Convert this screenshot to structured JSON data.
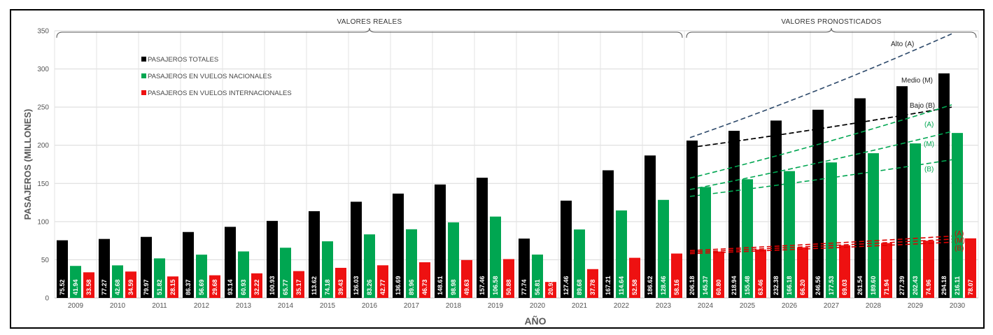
{
  "chart_data": {
    "type": "bar",
    "ylabel": "PASAJEROS (MILLONES)",
    "xlabel": "AÑO",
    "ylim": [
      0,
      350
    ],
    "yticks": [
      0,
      50,
      100,
      150,
      200,
      250,
      300,
      350
    ],
    "grid": true,
    "categories": [
      "2009",
      "2010",
      "2011",
      "2012",
      "2013",
      "2014",
      "2015",
      "2016",
      "2017",
      "2018",
      "2019",
      "2020",
      "2021",
      "2022",
      "2023",
      "2024",
      "2025",
      "2026",
      "2027",
      "2028",
      "2029",
      "2030"
    ],
    "series": [
      {
        "name": "PASAJEROS TOTALES",
        "color": "#000000",
        "values": [
          75.52,
          77.27,
          79.97,
          86.37,
          93.14,
          100.93,
          113.62,
          126.03,
          136.69,
          148.61,
          157.46,
          77.74,
          127.46,
          167.21,
          186.62,
          206.18,
          218.94,
          232.38,
          246.56,
          261.54,
          277.39,
          294.18
        ],
        "labels": [
          "75.52",
          "77.27",
          "79.97",
          "86.37",
          "93.14",
          "100.93",
          "113.62",
          "126.03",
          "136.69",
          "148.61",
          "157.46",
          "77.74",
          "127.46",
          "167.21",
          "186.62",
          "206.18",
          "218.94",
          "232.38",
          "246.56",
          "261.54",
          "277.39",
          "294.18"
        ]
      },
      {
        "name": "PASAJEROS EN VUELOS NACIONALES",
        "color": "#00a651",
        "values": [
          41.94,
          42.68,
          51.82,
          56.69,
          60.93,
          65.77,
          74.18,
          83.26,
          89.96,
          98.98,
          106.58,
          56.81,
          89.68,
          114.64,
          128.46,
          145.37,
          155.48,
          166.18,
          177.53,
          189.6,
          202.43,
          216.11
        ],
        "labels": [
          "41.94",
          "42.68",
          "51.82",
          "56.69",
          "60.93",
          "65.77",
          "74.18",
          "83.26",
          "89.96",
          "98.98",
          "106.58",
          "56.81",
          "89.68",
          "114.64",
          "128.46",
          "145.37",
          "155.48",
          "166.18",
          "177.53",
          "189.60",
          "202.43",
          "216.11"
        ]
      },
      {
        "name": "PASAJEROS EN VUELOS INTERNACIONALES",
        "color": "#ee1111",
        "values": [
          33.58,
          34.59,
          28.15,
          29.68,
          32.22,
          35.17,
          39.43,
          42.77,
          46.73,
          49.63,
          50.88,
          20.93,
          37.78,
          52.58,
          58.16,
          60.8,
          63.46,
          66.2,
          69.03,
          71.94,
          74.96,
          78.07
        ],
        "labels": [
          "33.58",
          "34.59",
          "28.15",
          "29.68",
          "32.22",
          "35.17",
          "39.43",
          "42.77",
          "46.73",
          "49.63",
          "50.88",
          "20.93",
          "37.78",
          "52.58",
          "58.16",
          "60.80",
          "63.46",
          "66.20",
          "69.03",
          "71.94",
          "74.96",
          "78.07"
        ]
      }
    ],
    "legend": {
      "placement": "top-left"
    },
    "brackets": [
      {
        "label": "VALORES REALES",
        "from": "2009",
        "to": "2023"
      },
      {
        "label": "VALORES PRONOSTICADOS",
        "from": "2024",
        "to": "2030"
      }
    ],
    "projections": [
      {
        "label": "Alto (A)",
        "group": "total",
        "color": "#2e4a6b",
        "x": [
          2024,
          2030
        ],
        "y": [
          210,
          346
        ]
      },
      {
        "label": "Medio (M)",
        "group": "total",
        "color": "#000000",
        "x": [
          2024,
          2030
        ],
        "y": [
          197,
          250
        ]
      },
      {
        "label": "Bajo (B)",
        "group": "total",
        "color": "#000000",
        "x": [
          2024,
          2030
        ],
        "y": [
          197,
          250
        ]
      },
      {
        "label": "(A)",
        "group": "nacional",
        "color": "#00a651",
        "x": [
          2024,
          2030
        ],
        "y": [
          157,
          253
        ]
      },
      {
        "label": "(M)",
        "group": "nacional",
        "color": "#00a651",
        "x": [
          2024,
          2030
        ],
        "y": [
          142,
          218
        ]
      },
      {
        "label": "(B)",
        "group": "nacional",
        "color": "#00a651",
        "x": [
          2024,
          2030
        ],
        "y": [
          133,
          181
        ]
      },
      {
        "label": "(A)",
        "group": "internacional",
        "color": "#dd0000",
        "x": [
          2024,
          2030
        ],
        "y": [
          62,
          81
        ]
      },
      {
        "label": "(M)",
        "group": "internacional",
        "color": "#dd0000",
        "x": [
          2024,
          2030
        ],
        "y": [
          60,
          77
        ]
      },
      {
        "label": "(B)",
        "group": "internacional",
        "color": "#dd0000",
        "x": [
          2024,
          2030
        ],
        "y": [
          58,
          73
        ]
      }
    ]
  }
}
